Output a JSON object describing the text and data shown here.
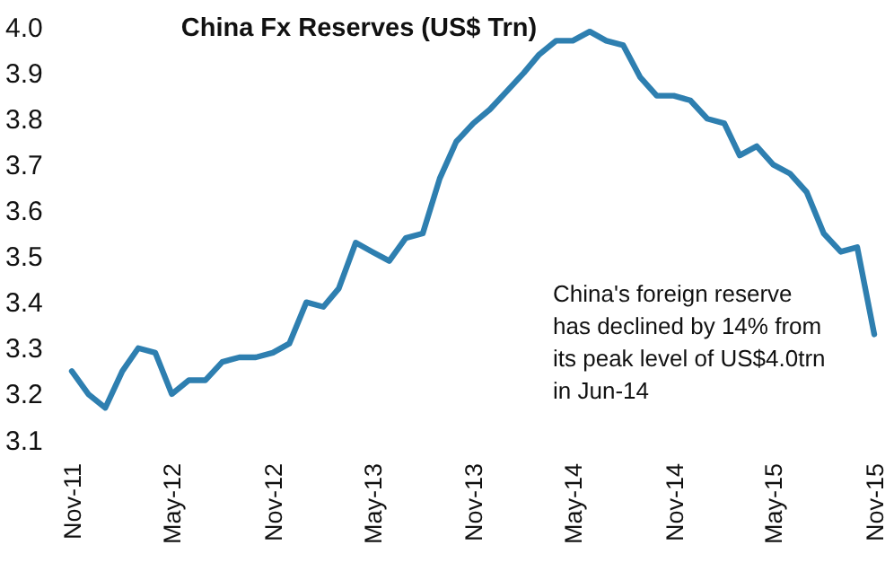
{
  "chart_data": {
    "type": "line",
    "title": "China Fx Reserves (US$ Trn)",
    "x": [
      "2011-11",
      "2011-12",
      "2012-01",
      "2012-02",
      "2012-03",
      "2012-04",
      "2012-05",
      "2012-06",
      "2012-07",
      "2012-08",
      "2012-09",
      "2012-10",
      "2012-11",
      "2012-12",
      "2013-01",
      "2013-02",
      "2013-03",
      "2013-04",
      "2013-05",
      "2013-06",
      "2013-07",
      "2013-08",
      "2013-09",
      "2013-10",
      "2013-11",
      "2013-12",
      "2014-01",
      "2014-02",
      "2014-03",
      "2014-04",
      "2014-05",
      "2014-06",
      "2014-07",
      "2014-08",
      "2014-09",
      "2014-10",
      "2014-11",
      "2014-12",
      "2015-01",
      "2015-02",
      "2015-03",
      "2015-04",
      "2015-05",
      "2015-06",
      "2015-07",
      "2015-08",
      "2015-09",
      "2015-10",
      "2015-11"
    ],
    "series": [
      {
        "color": "#2e7fb0",
        "values": [
          3.25,
          3.2,
          3.17,
          3.25,
          3.3,
          3.29,
          3.2,
          3.23,
          3.23,
          3.27,
          3.28,
          3.28,
          3.29,
          3.31,
          3.4,
          3.39,
          3.43,
          3.53,
          3.51,
          3.49,
          3.54,
          3.55,
          3.67,
          3.75,
          3.79,
          3.82,
          3.86,
          3.9,
          3.94,
          3.97,
          3.97,
          3.99,
          3.97,
          3.96,
          3.89,
          3.85,
          3.85,
          3.84,
          3.8,
          3.79,
          3.72,
          3.74,
          3.7,
          3.68,
          3.64,
          3.55,
          3.51,
          3.52,
          3.33
        ]
      }
    ],
    "xlim": [
      "2011-11",
      "2015-11"
    ],
    "xticks": [
      {
        "value": "2011-11",
        "label": "Nov-11"
      },
      {
        "value": "2012-05",
        "label": "May-12"
      },
      {
        "value": "2012-11",
        "label": "Nov-12"
      },
      {
        "value": "2013-05",
        "label": "May-13"
      },
      {
        "value": "2013-11",
        "label": "Nov-13"
      },
      {
        "value": "2014-05",
        "label": "May-14"
      },
      {
        "value": "2014-11",
        "label": "Nov-14"
      },
      {
        "value": "2015-05",
        "label": "May-15"
      },
      {
        "value": "2015-11",
        "label": "Nov-15"
      }
    ],
    "ylim": [
      3.1,
      4.0
    ],
    "yticks": [
      {
        "value": 3.1,
        "label": "3.1"
      },
      {
        "value": 3.2,
        "label": "3.2"
      },
      {
        "value": 3.3,
        "label": "3.3"
      },
      {
        "value": 3.4,
        "label": "3.4"
      },
      {
        "value": 3.5,
        "label": "3.5"
      },
      {
        "value": 3.6,
        "label": "3.6"
      },
      {
        "value": 3.7,
        "label": "3.7"
      },
      {
        "value": 3.8,
        "label": "3.8"
      },
      {
        "value": 3.9,
        "label": "3.9"
      },
      {
        "value": 4.0,
        "label": "4.0"
      }
    ],
    "annotations": [
      "China's foreign reserve\nhas declined by 14% from\nits peak level of US$4.0trn\nin Jun-14"
    ],
    "marker": "none",
    "line_style": "solid"
  }
}
